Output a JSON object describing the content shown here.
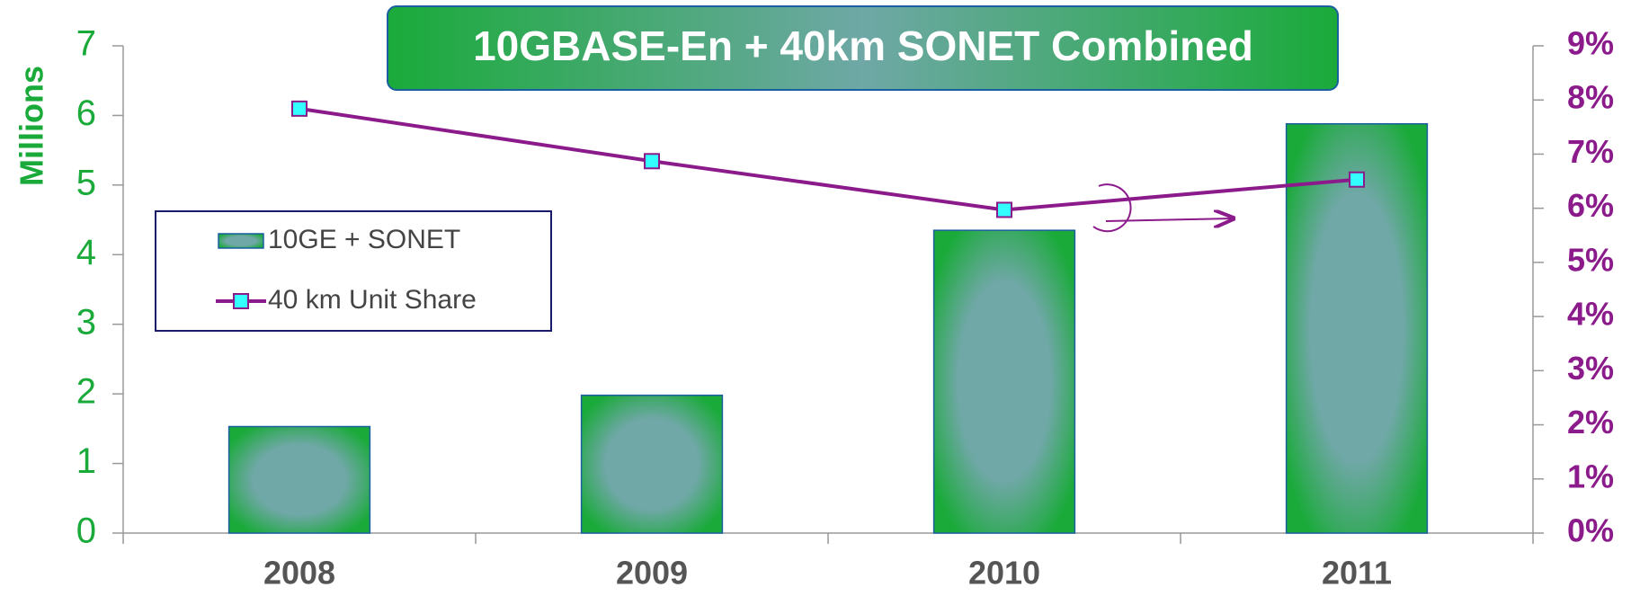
{
  "chart_data": {
    "type": "bar",
    "title": "10GBASE-En + 40km SONET Combined",
    "y_label": "Millions",
    "categories": [
      "2008",
      "2009",
      "2010",
      "2011"
    ],
    "series": [
      {
        "name": "10GE + SONET",
        "type": "bar",
        "color": "#1aaa3a",
        "values": [
          1.53,
          1.98,
          4.35,
          5.88
        ]
      },
      {
        "name": "40 km Unit Share",
        "type": "line",
        "axis": "y2",
        "color": "#8b1a8b",
        "marker_color": "#33ffff",
        "values": [
          7.84,
          6.87,
          5.97,
          6.53
        ]
      }
    ],
    "ylim": [
      0,
      7
    ],
    "yticks": [
      0,
      1,
      2,
      3,
      4,
      5,
      6,
      7
    ],
    "y2lim": [
      0,
      9
    ],
    "y2ticks": [
      {
        "value": 0,
        "label": "0%"
      },
      {
        "value": 1,
        "label": "1%"
      },
      {
        "value": 2,
        "label": "2%"
      },
      {
        "value": 3,
        "label": "3%"
      },
      {
        "value": 4,
        "label": "4%"
      },
      {
        "value": 5,
        "label": "5%"
      },
      {
        "value": 6,
        "label": "6%"
      },
      {
        "value": 7,
        "label": "7%"
      },
      {
        "value": 8,
        "label": "8%"
      },
      {
        "value": 9,
        "label": "9%"
      }
    ]
  }
}
